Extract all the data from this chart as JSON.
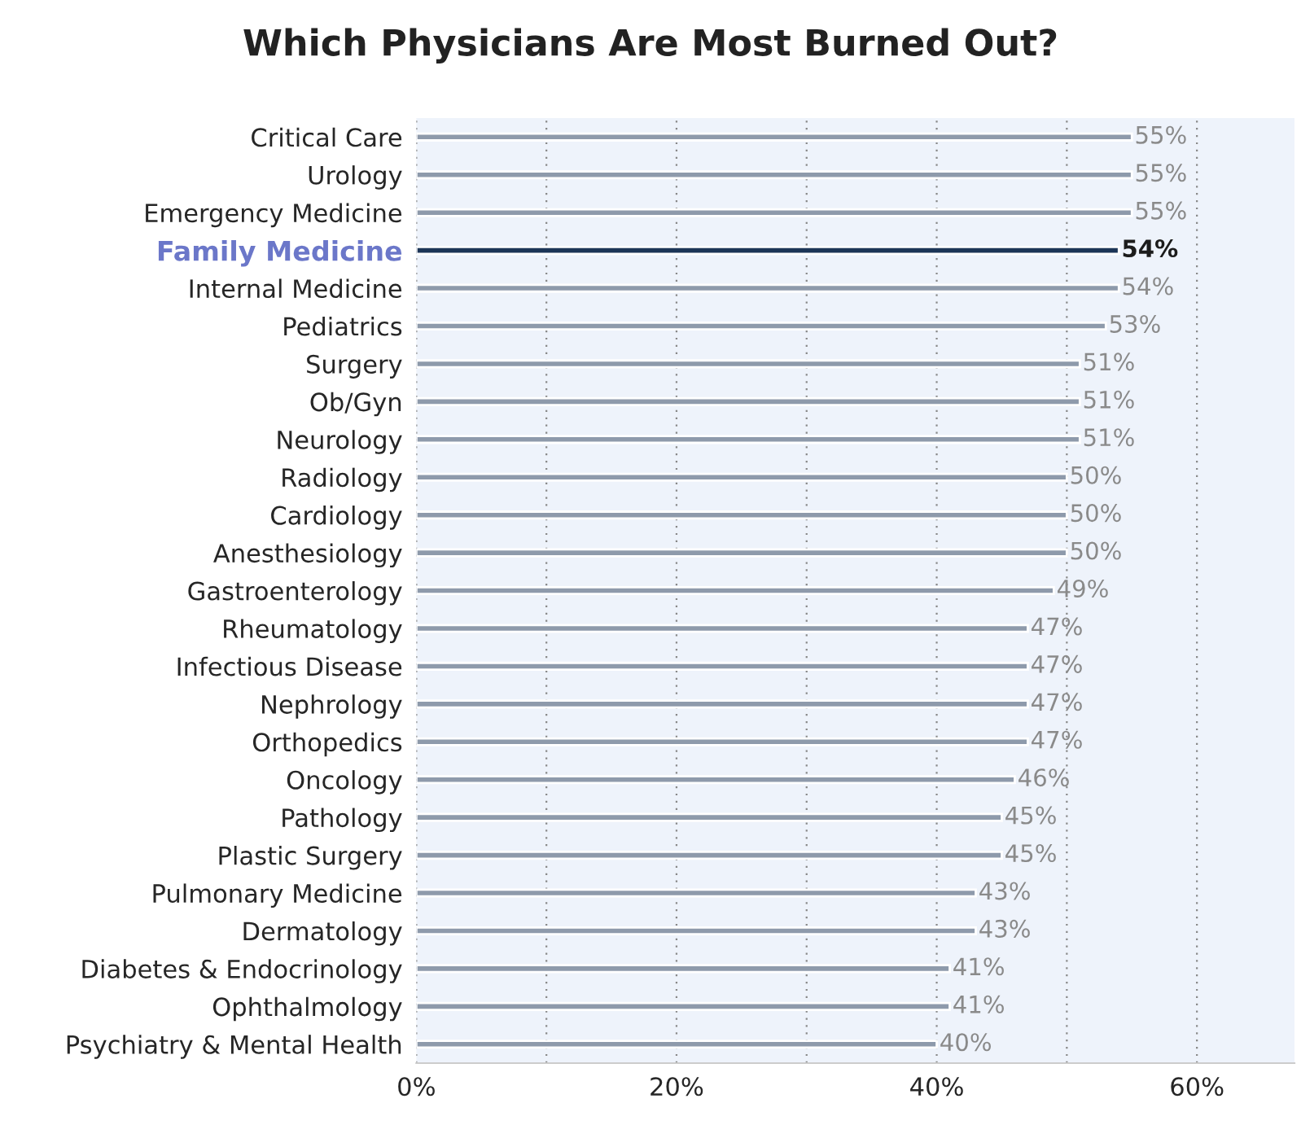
{
  "chart_data": {
    "type": "bar",
    "orientation": "horizontal",
    "title": "Which Physicians Are Most Burned Out?",
    "categories": [
      "Critical Care",
      "Urology",
      "Emergency Medicine",
      "Family Medicine",
      "Internal Medicine",
      "Pediatrics",
      "Surgery",
      "Ob/Gyn",
      "Neurology",
      "Radiology",
      "Cardiology",
      "Anesthesiology",
      "Gastroenterology",
      "Rheumatology",
      "Infectious Disease",
      "Nephrology",
      "Orthopedics",
      "Oncology",
      "Pathology",
      "Plastic Surgery",
      "Pulmonary Medicine",
      "Dermatology",
      "Diabetes & Endocrinology",
      "Ophthalmology",
      "Psychiatry & Mental Health"
    ],
    "values": [
      55,
      55,
      55,
      54,
      54,
      53,
      51,
      51,
      51,
      50,
      50,
      50,
      49,
      47,
      47,
      47,
      47,
      46,
      45,
      45,
      43,
      43,
      41,
      41,
      40
    ],
    "value_labels": [
      "55%",
      "55%",
      "55%",
      "54%",
      "54%",
      "53%",
      "51%",
      "51%",
      "51%",
      "50%",
      "50%",
      "50%",
      "49%",
      "47%",
      "47%",
      "47%",
      "47%",
      "46%",
      "45%",
      "45%",
      "43%",
      "43%",
      "41%",
      "41%",
      "40%"
    ],
    "colors": [
      "#8e9aab",
      "#8e9aab",
      "#8e9aab",
      "#1c3557",
      "#8e9aab",
      "#8e9aab",
      "#8e9aab",
      "#8e9aab",
      "#8e9aab",
      "#8e9aab",
      "#8e9aab",
      "#8e9aab",
      "#8e9aab",
      "#8e9aab",
      "#8e9aab",
      "#8e9aab",
      "#8e9aab",
      "#8e9aab",
      "#8e9aab",
      "#8e9aab",
      "#8e9aab",
      "#8e9aab",
      "#8e9aab",
      "#8e9aab",
      "#8e9aab"
    ],
    "xlim": [
      0,
      67.5
    ],
    "xticks": [
      {
        "value": 0,
        "label": "0%"
      },
      {
        "value": 10,
        "label": null
      },
      {
        "value": 20,
        "label": "20%"
      },
      {
        "value": 30,
        "label": null
      },
      {
        "value": 40,
        "label": "40%"
      },
      {
        "value": 50,
        "label": null
      },
      {
        "value": 60,
        "label": "60%"
      }
    ],
    "grid": "x"
  }
}
